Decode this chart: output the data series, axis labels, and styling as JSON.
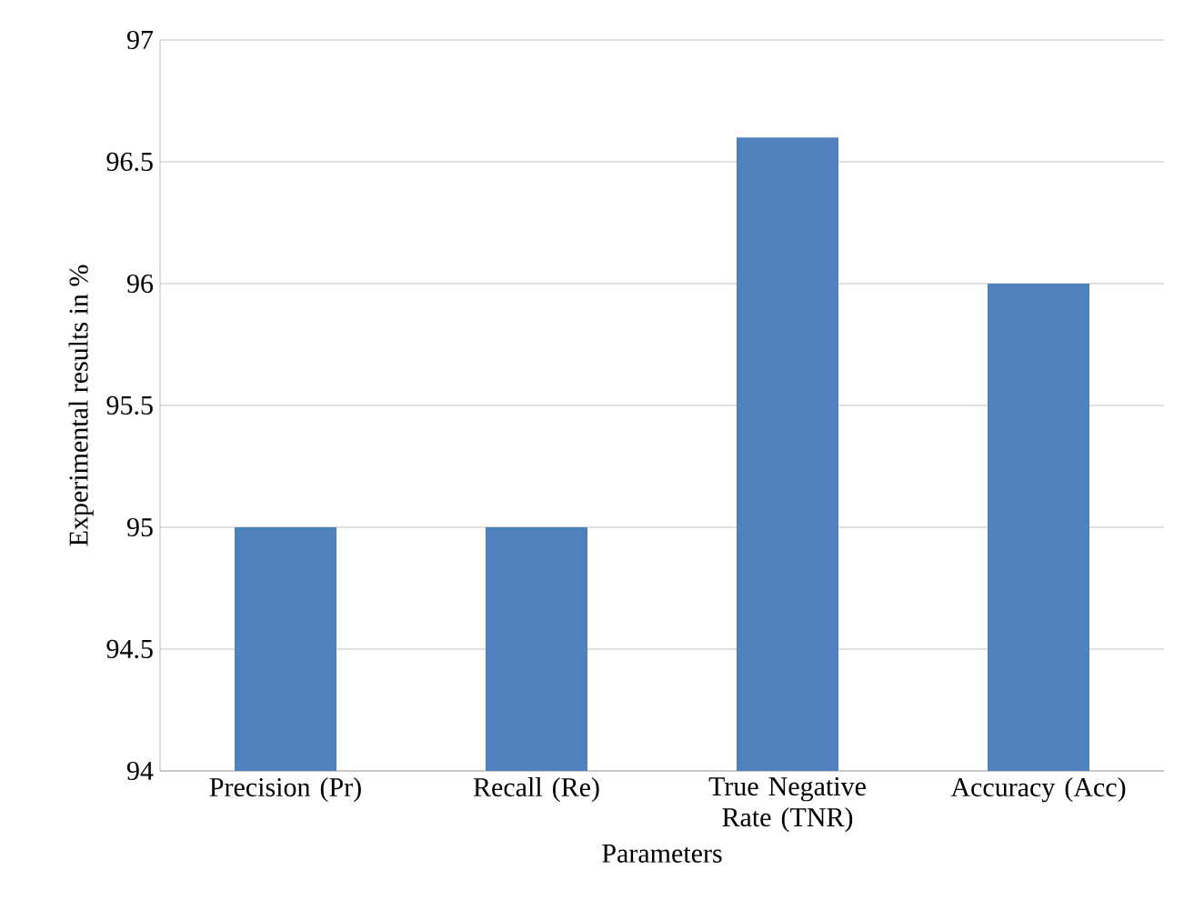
{
  "chart_data": {
    "type": "bar",
    "xlabel": "Parameters",
    "ylabel": "Experimental results in %",
    "categories": [
      "Precision (Pr)",
      "Recall (Re)",
      "True Negative Rate (TNR)",
      "Accuracy (Acc)"
    ],
    "values": [
      95,
      95,
      96.6,
      96
    ],
    "color": "#4f81bd",
    "ylim": [
      94,
      97
    ],
    "yticks": [
      94,
      94.5,
      95,
      95.5,
      96,
      96.5,
      97
    ],
    "grid": "y"
  }
}
